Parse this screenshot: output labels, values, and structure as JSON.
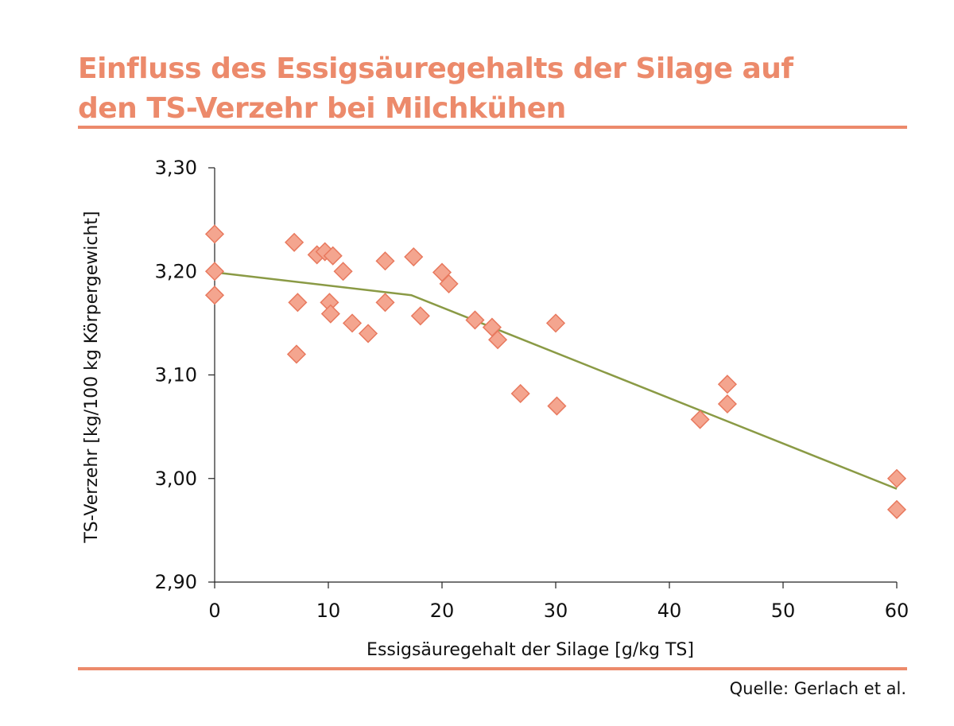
{
  "title": {
    "line1": "Einfluss des Essigsäuregehalts der Silage auf",
    "line2": "den TS-Verzehr bei Milchkühen"
  },
  "source": "Quelle: Gerlach et al.",
  "colors": {
    "accent": "#ec8a6b",
    "marker_fill": "#f4a58f",
    "marker_stroke": "#e8795e",
    "trend": "#8a9a45"
  },
  "chart_data": {
    "type": "scatter",
    "xlabel": "Essigsäuregehalt der Silage [g/kg TS]",
    "ylabel": "TS-Verzehr [kg/100 kg Körpergewicht]",
    "xlim": [
      0,
      60
    ],
    "ylim": [
      2.9,
      3.3
    ],
    "xticks": [
      0,
      10,
      20,
      30,
      40,
      50,
      60
    ],
    "xtick_labels": [
      "0",
      "10",
      "20",
      "30",
      "40",
      "50",
      "60"
    ],
    "yticks": [
      2.9,
      3.0,
      3.1,
      3.2,
      3.3
    ],
    "ytick_labels": [
      "2,90",
      "3,00",
      "3,10",
      "3,20",
      "3,30"
    ],
    "points": [
      {
        "x": 0.0,
        "y": 3.236
      },
      {
        "x": 0.0,
        "y": 3.2
      },
      {
        "x": 0.0,
        "y": 3.177
      },
      {
        "x": 7.0,
        "y": 3.228
      },
      {
        "x": 7.3,
        "y": 3.17
      },
      {
        "x": 7.2,
        "y": 3.12
      },
      {
        "x": 9.0,
        "y": 3.216
      },
      {
        "x": 9.7,
        "y": 3.219
      },
      {
        "x": 10.4,
        "y": 3.215
      },
      {
        "x": 11.3,
        "y": 3.2
      },
      {
        "x": 10.1,
        "y": 3.17
      },
      {
        "x": 10.2,
        "y": 3.159
      },
      {
        "x": 12.1,
        "y": 3.15
      },
      {
        "x": 13.5,
        "y": 3.14
      },
      {
        "x": 15.0,
        "y": 3.21
      },
      {
        "x": 15.0,
        "y": 3.17
      },
      {
        "x": 17.5,
        "y": 3.214
      },
      {
        "x": 18.1,
        "y": 3.157
      },
      {
        "x": 20.0,
        "y": 3.199
      },
      {
        "x": 20.6,
        "y": 3.188
      },
      {
        "x": 22.9,
        "y": 3.153
      },
      {
        "x": 24.4,
        "y": 3.146
      },
      {
        "x": 24.9,
        "y": 3.134
      },
      {
        "x": 26.9,
        "y": 3.082
      },
      {
        "x": 30.0,
        "y": 3.15
      },
      {
        "x": 30.1,
        "y": 3.07
      },
      {
        "x": 42.7,
        "y": 3.057
      },
      {
        "x": 45.1,
        "y": 3.091
      },
      {
        "x": 45.1,
        "y": 3.072
      },
      {
        "x": 60.0,
        "y": 3.0
      },
      {
        "x": 60.0,
        "y": 2.97
      }
    ],
    "trend_line": [
      {
        "x": 0.0,
        "y": 3.199
      },
      {
        "x": 17.3,
        "y": 3.177
      },
      {
        "x": 60.0,
        "y": 2.99
      }
    ]
  }
}
